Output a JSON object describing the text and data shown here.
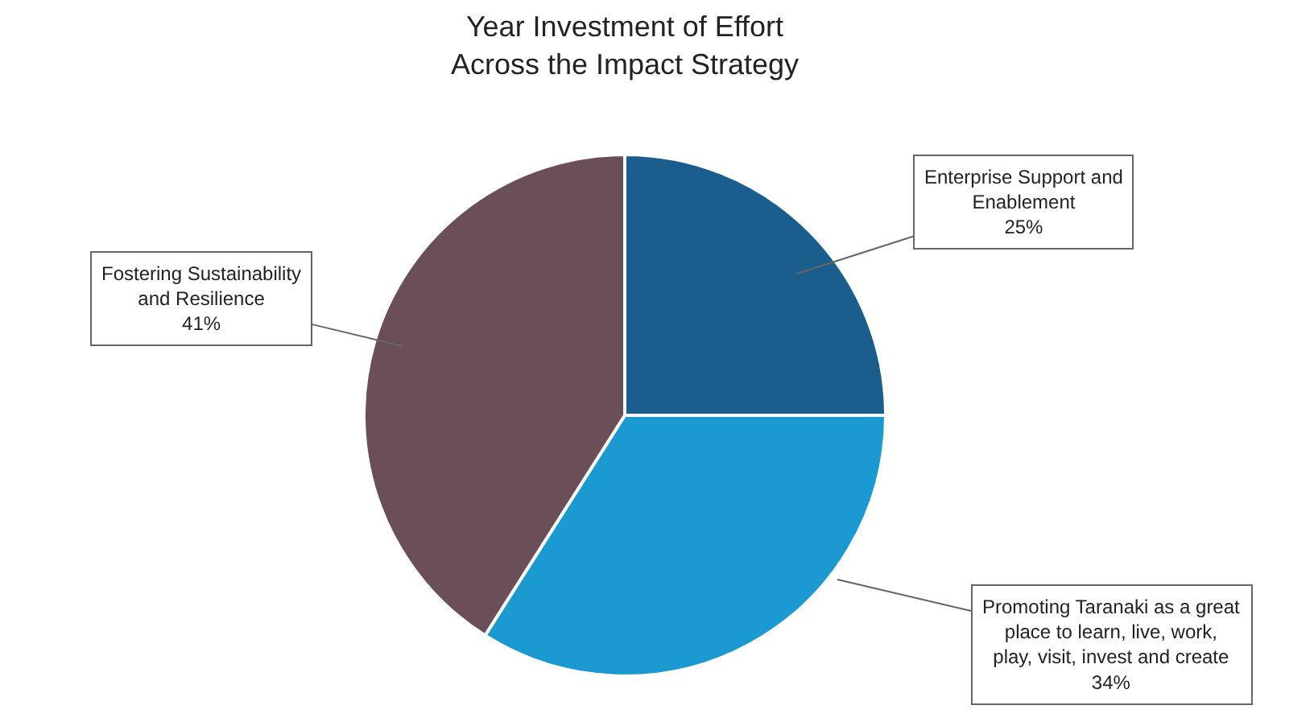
{
  "chart_data": {
    "type": "pie",
    "title": "Year Investment of Effort Across the Impact Strategy",
    "categories": [
      "Enterprise Support and Enablement",
      "Promoting Taranaki as a great place to learn, live, work, play, visit, invest and create",
      "Fostering Sustainability and Resilience"
    ],
    "values": [
      25,
      34,
      41
    ],
    "value_labels": [
      "25%",
      "34%",
      "41%"
    ],
    "colors": [
      "#1b5e8e",
      "#1a9ad0",
      "#6b4f58"
    ],
    "legend": false
  }
}
